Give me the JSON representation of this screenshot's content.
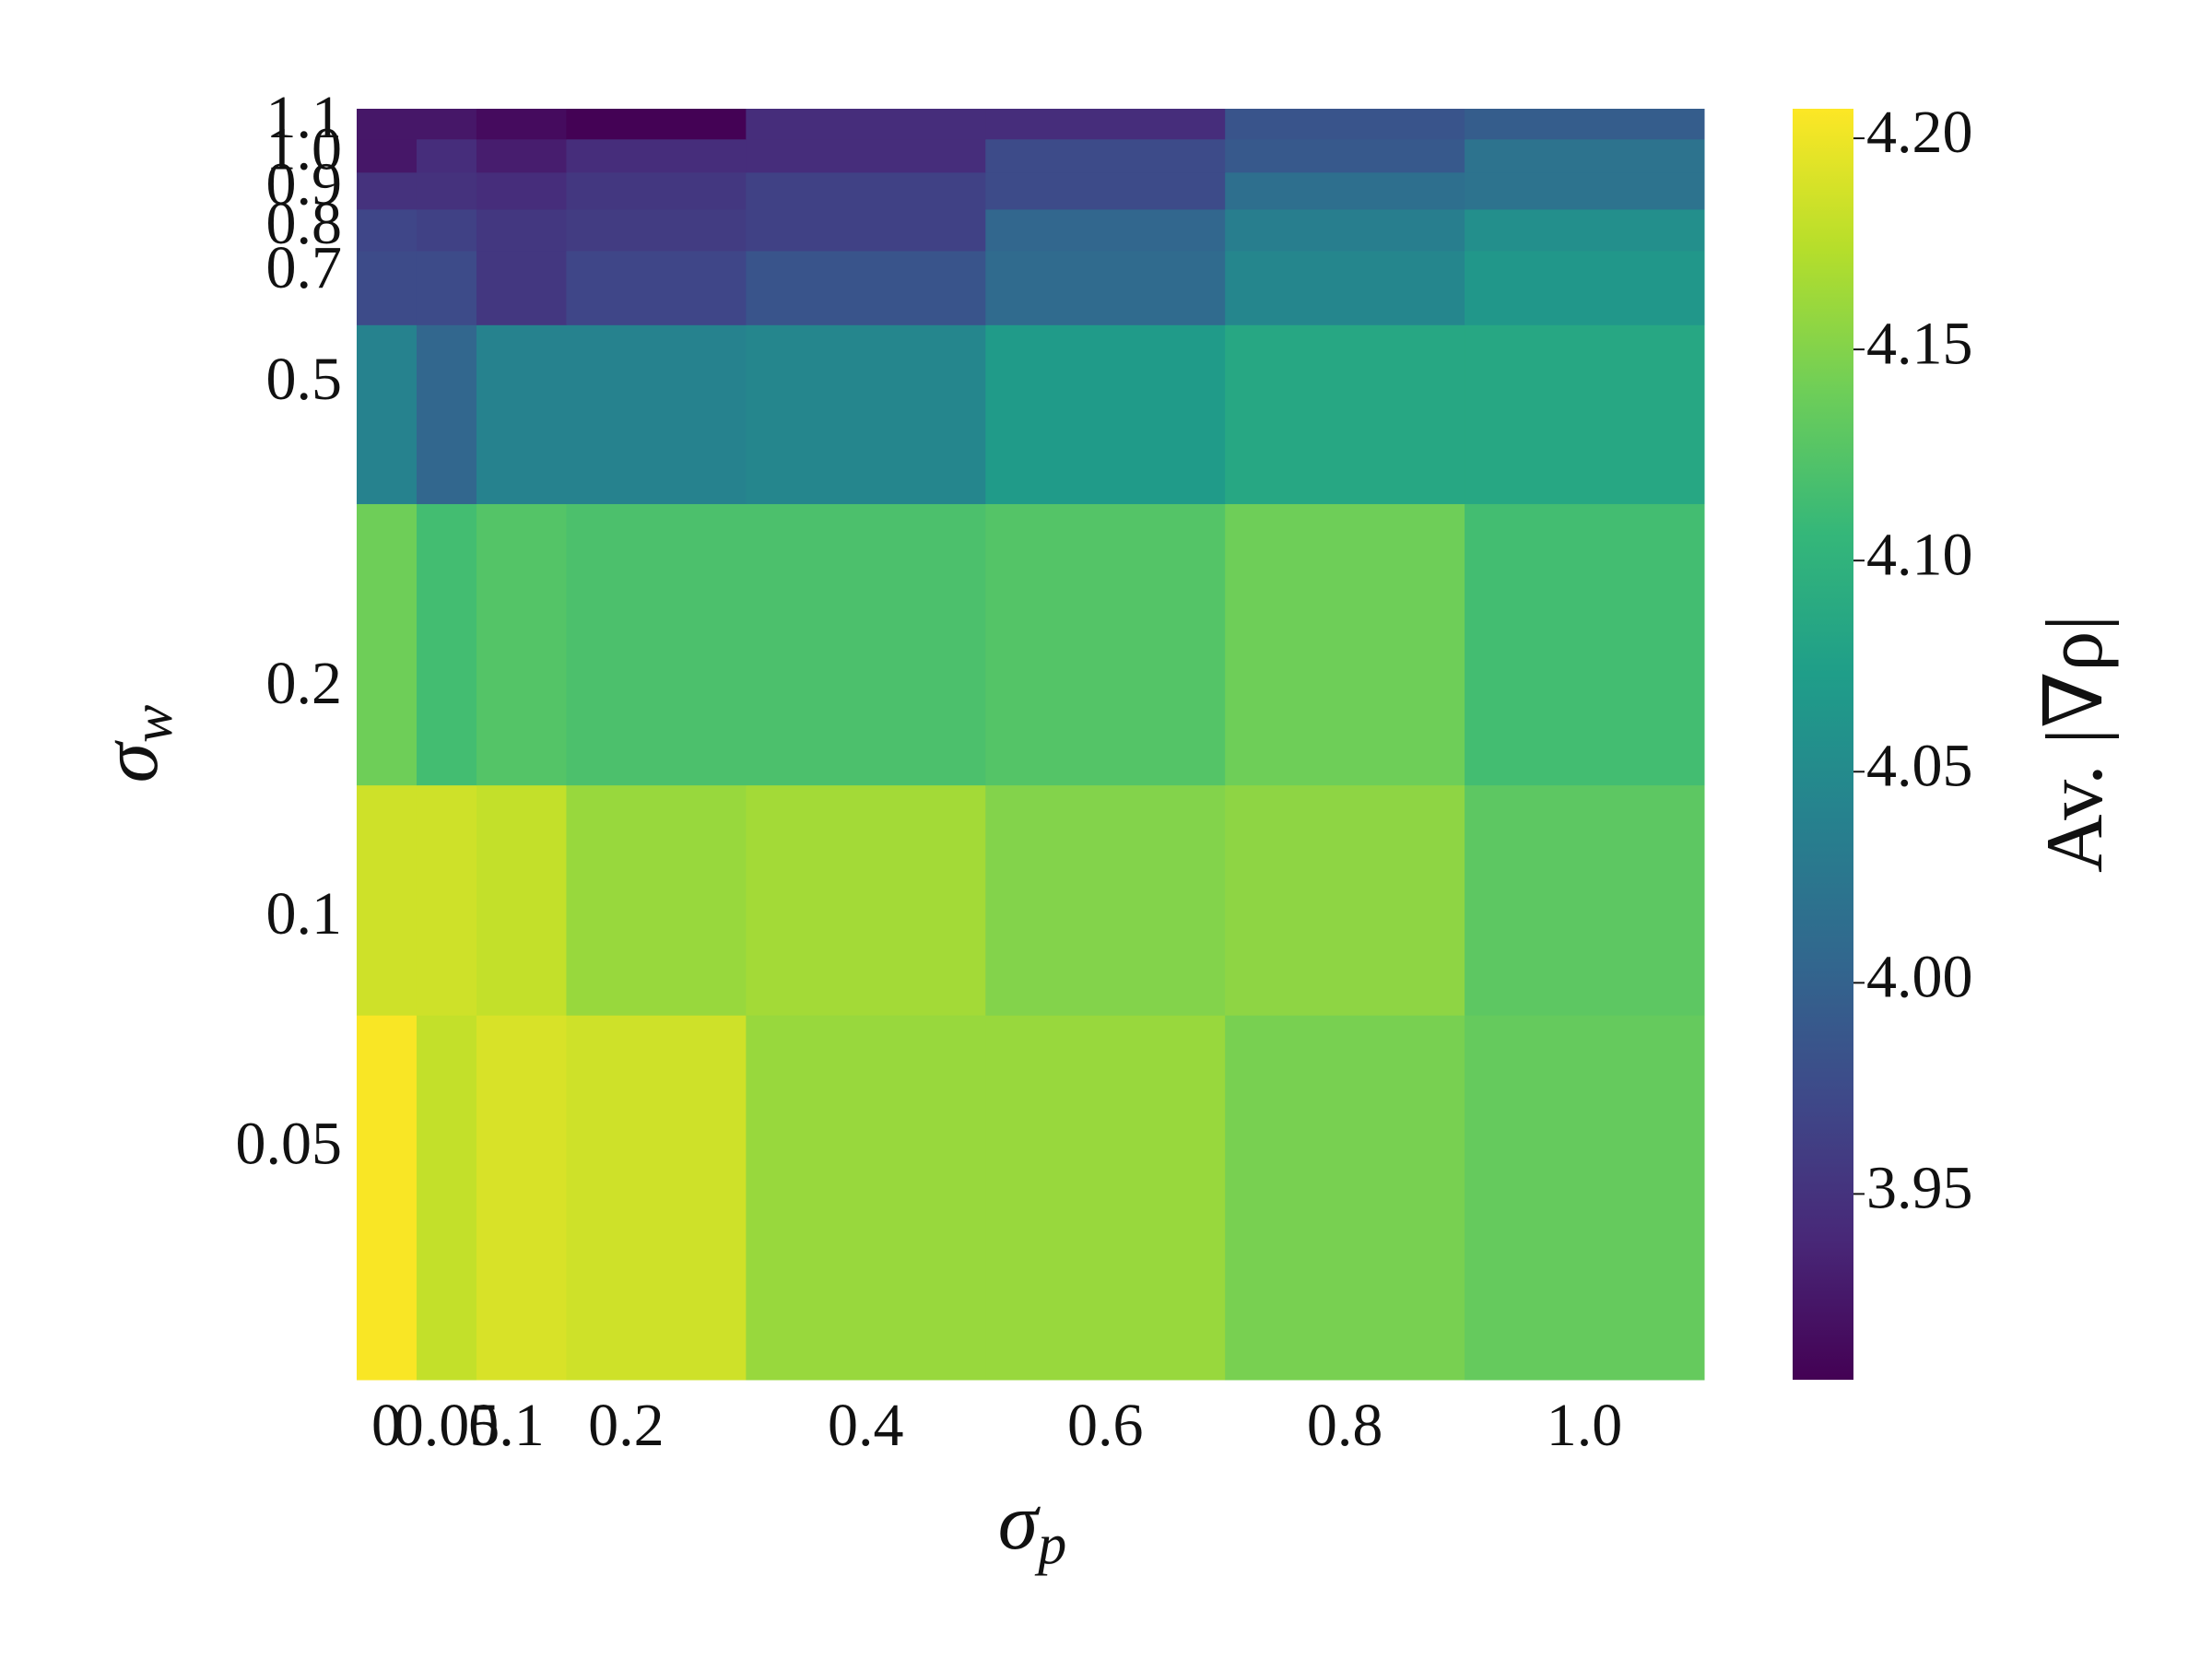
{
  "chart_data": {
    "type": "heatmap",
    "colormap": "viridis",
    "x": [
      0,
      0.05,
      0.1,
      0.2,
      0.4,
      0.6,
      0.8,
      1.0
    ],
    "y": [
      0.05,
      0.1,
      0.2,
      0.5,
      0.7,
      0.8,
      0.9,
      1.0,
      1.1
    ],
    "z": [
      [
        4.205,
        4.18,
        4.19,
        4.185,
        4.16,
        4.16,
        4.145,
        4.135
      ],
      [
        4.185,
        4.185,
        4.18,
        4.16,
        4.165,
        4.15,
        4.155,
        4.13
      ],
      [
        4.14,
        4.115,
        4.125,
        4.12,
        4.12,
        4.125,
        4.14,
        4.115
      ],
      [
        4.04,
        4.005,
        4.04,
        4.04,
        4.045,
        4.07,
        4.085,
        4.085
      ],
      [
        3.975,
        3.975,
        3.955,
        3.97,
        3.985,
        4.01,
        4.045,
        4.065
      ],
      [
        3.97,
        3.965,
        3.955,
        3.96,
        3.965,
        4.005,
        4.035,
        4.055
      ],
      [
        3.95,
        3.95,
        3.945,
        3.955,
        3.965,
        3.975,
        4.015,
        4.02
      ],
      [
        3.925,
        3.945,
        3.93,
        3.945,
        3.945,
        3.975,
        3.99,
        4.02
      ],
      [
        3.925,
        3.925,
        3.915,
        3.907,
        3.945,
        3.945,
        3.985,
        3.995
      ]
    ],
    "xlim": [
      -0.025,
      1.1
    ],
    "ylim": [
      0.025,
      1.15
    ],
    "ylog": true,
    "xticks": [
      0,
      0.05,
      0.1,
      0.2,
      0.4,
      0.6,
      0.8,
      {
        "value": 1.0,
        "label": "1.0"
      }
    ],
    "yticks": [
      0.05,
      0.1,
      0.2,
      0.5,
      0.7,
      0.8,
      0.9,
      {
        "value": 1.0,
        "label": "1.0"
      },
      1.1
    ],
    "clim": [
      3.906,
      4.207
    ],
    "cticks": [
      3.95,
      {
        "value": 4.0,
        "label": "4.00"
      },
      4.05,
      {
        "value": 4.1,
        "label": "4.10"
      },
      4.15,
      {
        "value": 4.2,
        "label": "4.20"
      }
    ],
    "xlabel": {
      "symbol": "σ",
      "subscript": "p"
    },
    "ylabel": {
      "symbol": "σ",
      "subscript": "w"
    },
    "clabel": "Av. |∇ρ|"
  }
}
